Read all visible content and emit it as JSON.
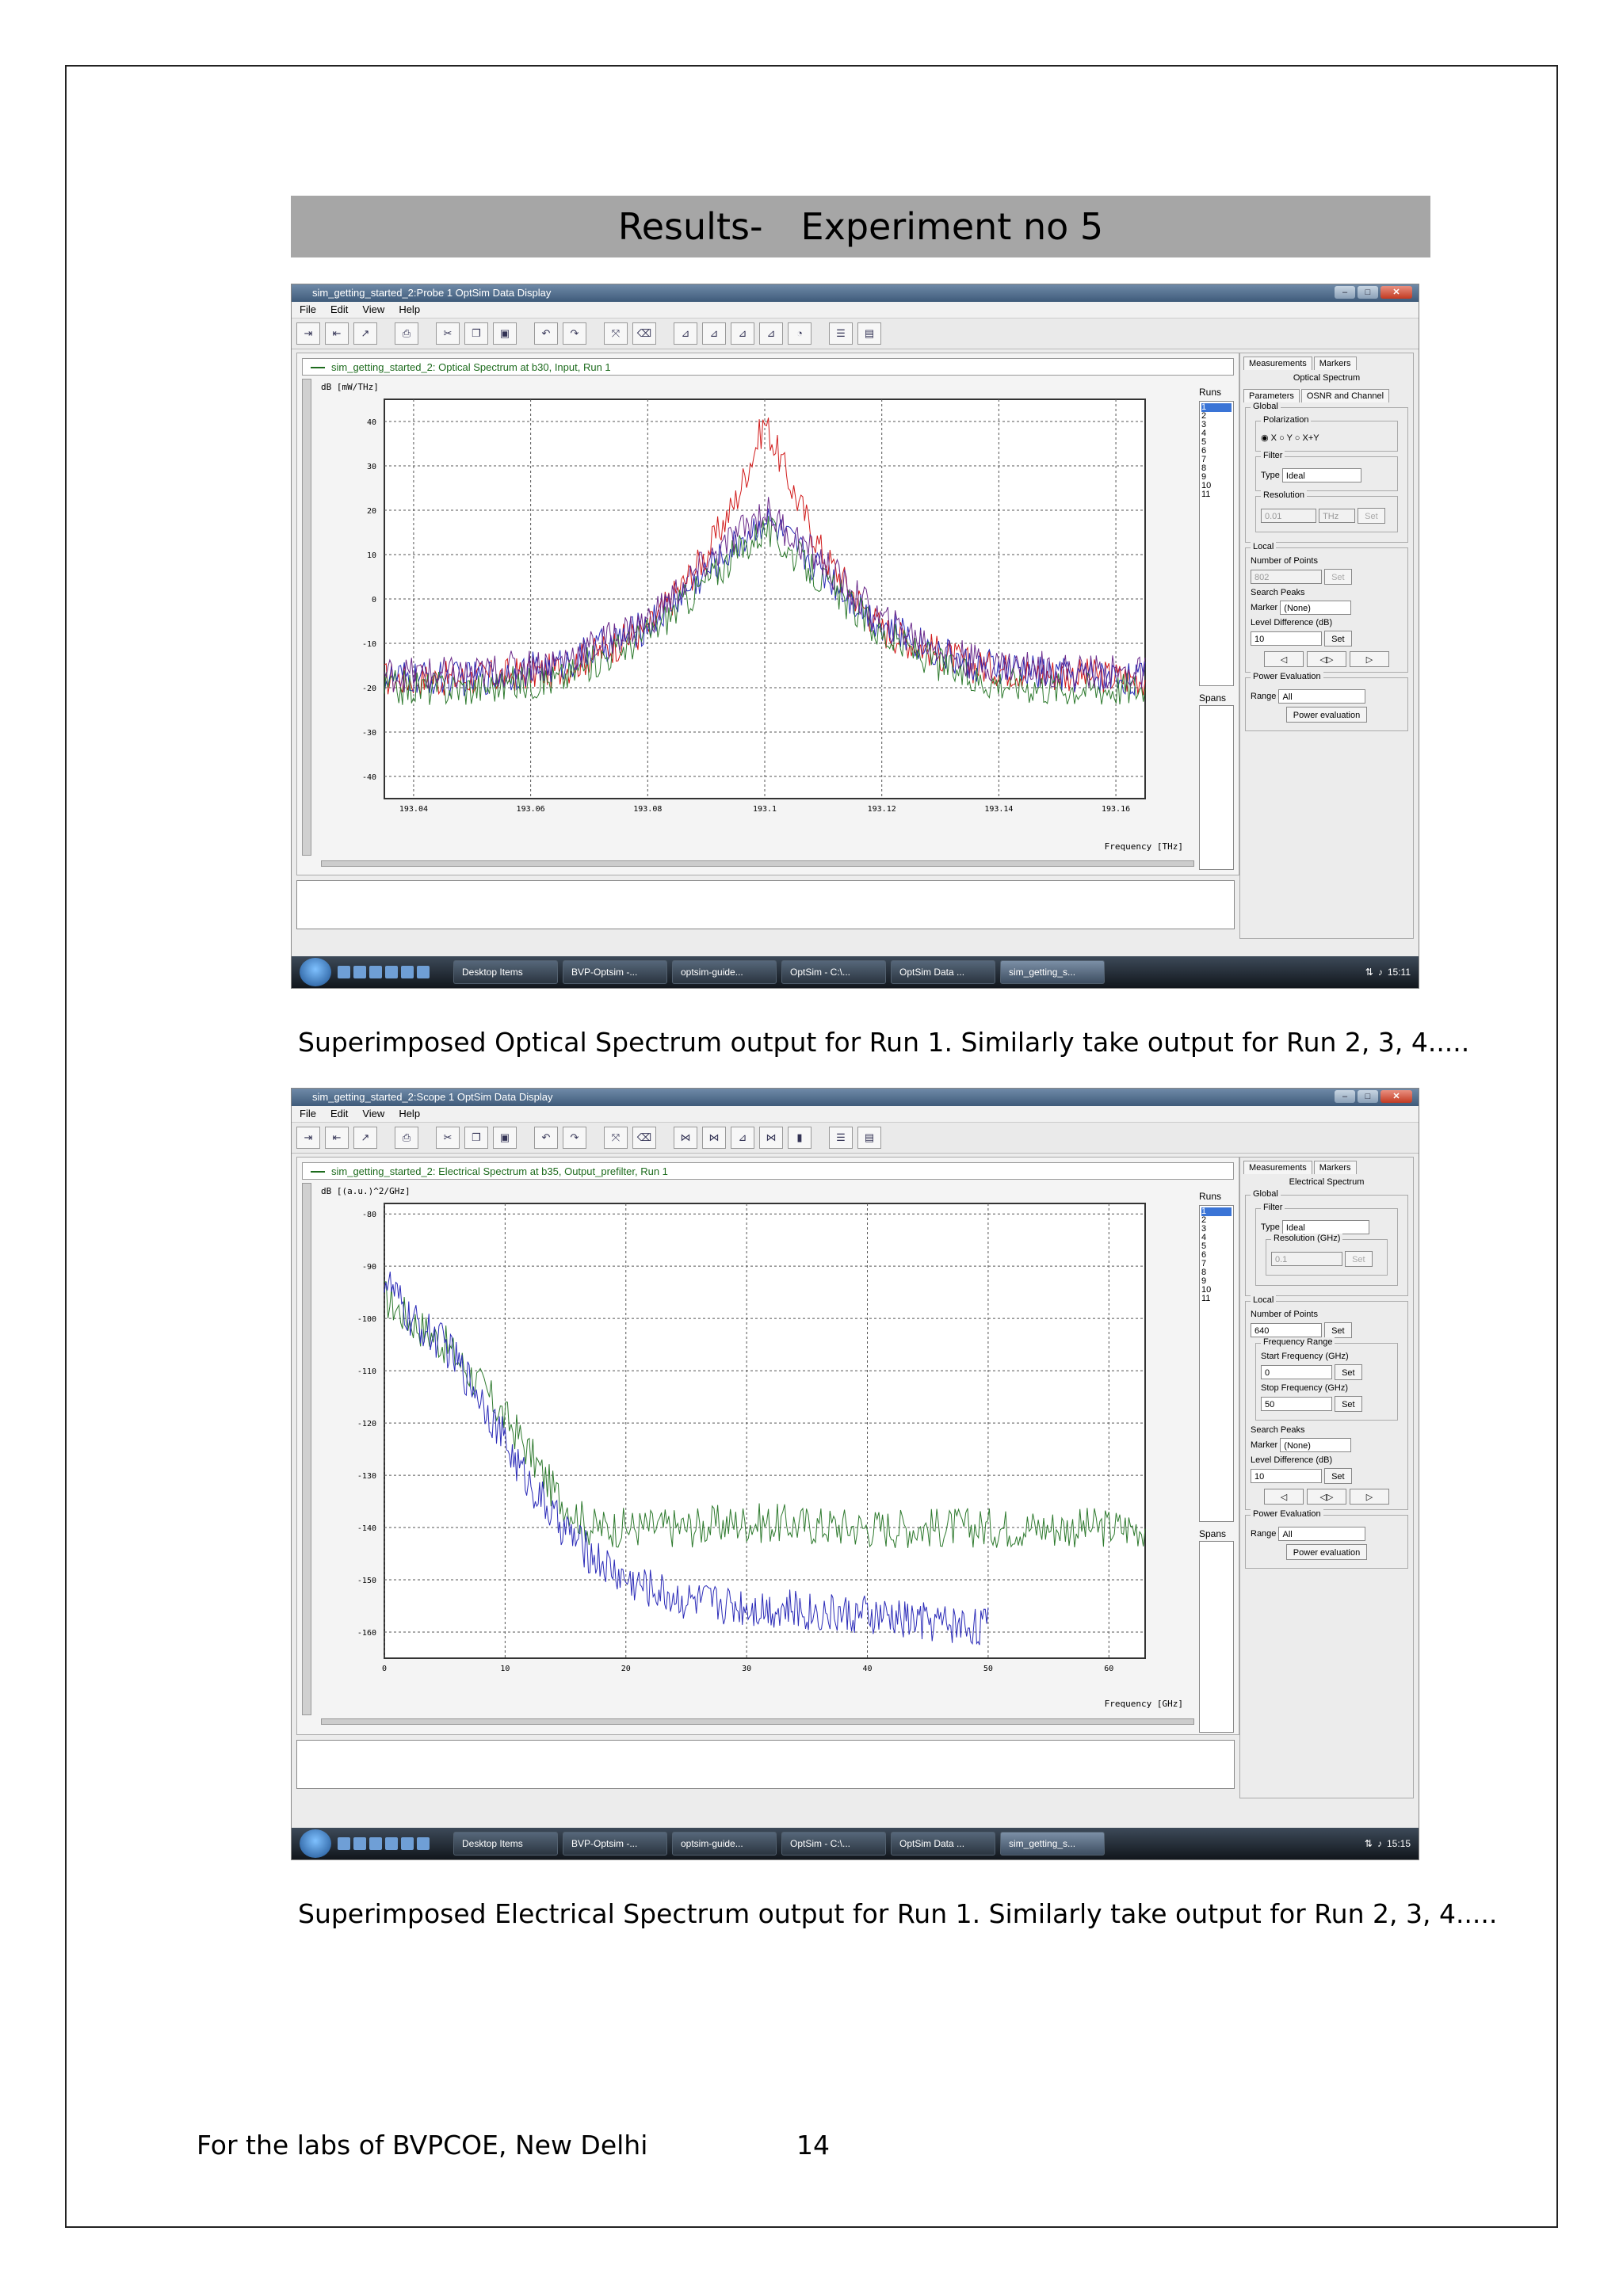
{
  "page": {
    "header": {
      "label": "Results-",
      "title": "Experiment no 5"
    },
    "caption1": "Superimposed Optical Spectrum output for Run 1. Similarly take output for Run 2, 3, 4.....",
    "caption2": "Superimposed Electrical Spectrum output for Run 1. Similarly take output for Run 2, 3, 4.....",
    "footer": {
      "left": "For the labs of BVPCOE, New Delhi",
      "page_number": "14"
    }
  },
  "colors": {
    "red": "#d11a1a",
    "blue": "#2b2bb8",
    "green": "#2e7a2e",
    "purple": "#6a2a8a",
    "olive": "#8a7a2a"
  },
  "window1": {
    "title": "sim_getting_started_2:Probe 1 OptSim Data Display",
    "menu": [
      "File",
      "Edit",
      "View",
      "Help"
    ],
    "legend": "sim_getting_started_2: Optical Spectrum at b30, Input, Run 1",
    "ylabel": "dB [mW/THz]",
    "xlabel": "Frequency [THz]",
    "runs_label": "Runs",
    "runs": [
      "1",
      "2",
      "3",
      "4",
      "5",
      "6",
      "7",
      "8",
      "9",
      "10",
      "11"
    ],
    "spans_label": "Spans",
    "side": {
      "tabs": [
        "Measurements",
        "Markers"
      ],
      "heading": "Optical Spectrum",
      "subtabs": [
        "Parameters",
        "OSNR and Channel"
      ],
      "global": "Global",
      "polarization": "Polarization",
      "pol_options": [
        "X",
        "Y",
        "X+Y"
      ],
      "filter": "Filter",
      "type_label": "Type",
      "type_value": "Ideal",
      "resolution": "Resolution",
      "resolution_value": "0.01",
      "resolution_unit": "THz",
      "set": "Set",
      "local": "Local",
      "num_points": "Number of Points",
      "num_points_value": "802",
      "search_peaks": "Search Peaks",
      "marker_label": "Marker",
      "marker_value": "(None)",
      "level_diff": "Level Difference (dB)",
      "level_value": "10",
      "power_eval": "Power Evaluation",
      "range_label": "Range",
      "range_value": "All",
      "power_button": "Power evaluation"
    },
    "taskbar": {
      "items": [
        "Desktop Items",
        "BVP-Optsim -...",
        "optsim-guide...",
        "OptSim - C:\\...",
        "OptSim Data ...",
        "sim_getting_s..."
      ],
      "time": "15:11"
    },
    "chart_data": {
      "type": "line",
      "x_ticks": [
        "193.04",
        "193.06",
        "193.08",
        "193.1",
        "193.12",
        "193.14",
        "193.16"
      ],
      "y_ticks": [
        "40",
        "30",
        "20",
        "10",
        "0",
        "-10",
        "-20",
        "-30",
        "-40"
      ],
      "xlim": [
        193.035,
        193.165
      ],
      "ylim": [
        -45,
        45
      ],
      "series": [
        {
          "color": "red",
          "x": [
            193.035,
            193.05,
            193.065,
            193.08,
            193.09,
            193.095,
            193.1,
            193.105,
            193.11,
            193.12,
            193.135,
            193.15,
            193.165
          ],
          "values": [
            -18,
            -18,
            -16,
            -7,
            10,
            22,
            40,
            24,
            10,
            -7,
            -15,
            -17,
            -18
          ]
        },
        {
          "color": "blue",
          "x": [
            193.035,
            193.05,
            193.065,
            193.08,
            193.09,
            193.1,
            193.11,
            193.12,
            193.135,
            193.15,
            193.165
          ],
          "values": [
            -18,
            -18,
            -15,
            -6,
            6,
            18,
            6,
            -6,
            -15,
            -17,
            -18
          ]
        },
        {
          "color": "green",
          "x": [
            193.035,
            193.05,
            193.065,
            193.08,
            193.09,
            193.1,
            193.11,
            193.12,
            193.135,
            193.15,
            193.165
          ],
          "values": [
            -20,
            -20,
            -18,
            -8,
            4,
            16,
            4,
            -8,
            -18,
            -20,
            -20
          ]
        },
        {
          "color": "purple",
          "x": [
            193.035,
            193.05,
            193.065,
            193.08,
            193.09,
            193.1,
            193.11,
            193.12,
            193.135,
            193.15,
            193.165
          ],
          "values": [
            -17,
            -17,
            -14,
            -5,
            8,
            20,
            8,
            -5,
            -14,
            -16,
            -17
          ]
        }
      ]
    }
  },
  "window2": {
    "title": "sim_getting_started_2:Scope 1 OptSim Data Display",
    "menu": [
      "File",
      "Edit",
      "View",
      "Help"
    ],
    "legend": "sim_getting_started_2: Electrical Spectrum at b35, Output_prefilter, Run 1",
    "ylabel": "dB [(a.u.)^2/GHz]",
    "xlabel": "Frequency [GHz]",
    "runs_label": "Runs",
    "runs": [
      "1",
      "2",
      "3",
      "4",
      "5",
      "6",
      "7",
      "8",
      "9",
      "10",
      "11"
    ],
    "spans_label": "Spans",
    "side": {
      "tabs": [
        "Measurements",
        "Markers"
      ],
      "heading": "Electrical Spectrum",
      "global": "Global",
      "filter": "Filter",
      "type_label": "Type",
      "type_value": "Ideal",
      "resolution": "Resolution (GHz)",
      "resolution_value": "0.1",
      "set": "Set",
      "local": "Local",
      "num_points": "Number of Points",
      "num_points_value": "640",
      "freq_range": "Frequency Range",
      "start_freq": "Start Frequency (GHz)",
      "start_value": "0",
      "stop_freq": "Stop Frequency (GHz)",
      "stop_value": "50",
      "search_peaks": "Search Peaks",
      "marker_label": "Marker",
      "marker_value": "(None)",
      "level_diff": "Level Difference (dB)",
      "level_value": "10",
      "power_eval": "Power Evaluation",
      "range_label": "Range",
      "range_value": "All",
      "power_button": "Power evaluation"
    },
    "taskbar": {
      "items": [
        "Desktop Items",
        "BVP-Optsim -...",
        "optsim-guide...",
        "OptSim - C:\\...",
        "OptSim Data ...",
        "sim_getting_s..."
      ],
      "time": "15:15"
    },
    "chart_data": {
      "type": "line",
      "x_ticks": [
        "0",
        "10",
        "20",
        "30",
        "40",
        "50",
        "60"
      ],
      "y_ticks": [
        "-80",
        "-90",
        "-100",
        "-110",
        "-120",
        "-130",
        "-140",
        "-150",
        "-160"
      ],
      "xlim": [
        0,
        63
      ],
      "ylim": [
        -165,
        -78
      ],
      "series": [
        {
          "color": "green",
          "x": [
            0,
            2,
            5,
            8,
            11,
            14,
            17,
            20,
            25,
            30,
            40,
            50,
            63
          ],
          "values": [
            -96,
            -100,
            -105,
            -113,
            -122,
            -133,
            -140,
            -140,
            -140,
            -139,
            -140,
            -140,
            -140
          ]
        },
        {
          "color": "blue",
          "x": [
            0,
            2,
            5,
            8,
            11,
            14,
            17,
            20,
            25,
            30,
            40,
            50
          ],
          "values": [
            -92,
            -100,
            -105,
            -115,
            -128,
            -138,
            -145,
            -150,
            -154,
            -155,
            -157,
            -159
          ]
        }
      ]
    }
  }
}
